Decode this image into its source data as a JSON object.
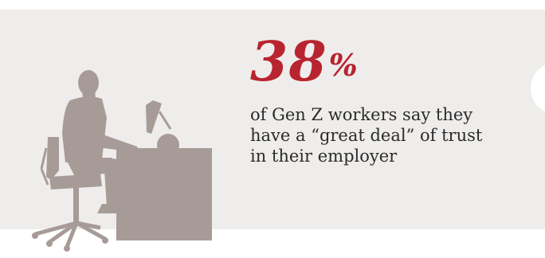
{
  "stat": {
    "value": "38",
    "unit": "%",
    "caption": "of Gen Z workers say they have a “great deal” of trust in their employer"
  },
  "colors": {
    "background": "#ffffff",
    "panel": "#efedeb",
    "accent": "#b8242f",
    "silhouette": "#a79b98",
    "text": "#2b2b2b"
  },
  "illustration": {
    "name": "person-at-desk-icon"
  }
}
